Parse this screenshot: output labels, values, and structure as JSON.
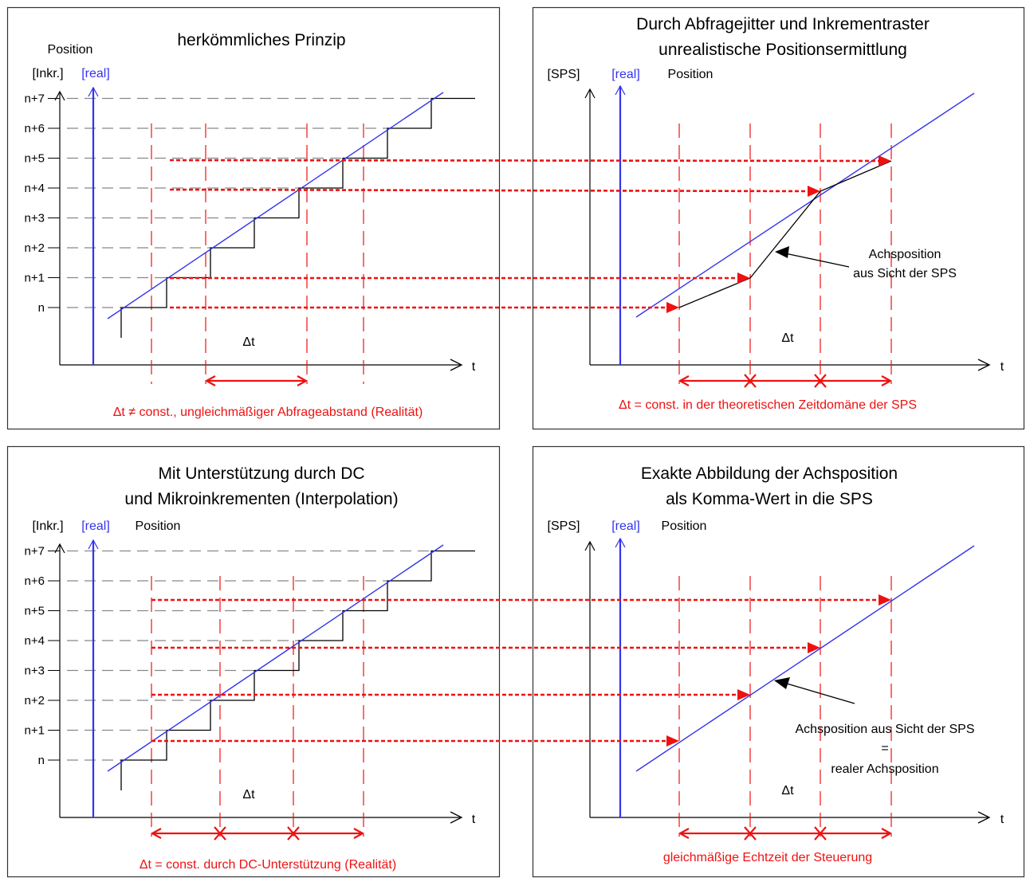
{
  "colors": {
    "black": "#000000",
    "blue": "#3333ee",
    "red": "#ee1111",
    "grid_gray": "#888888",
    "frame": "#333333"
  },
  "tick_labels": [
    "n",
    "n+1",
    "n+2",
    "n+3",
    "n+4",
    "n+5",
    "n+6",
    "n+7"
  ],
  "panels": {
    "top_left": {
      "title": [
        "herkömmliches Prinzip"
      ],
      "y_label_top": "Position",
      "y_label_incr": "[Inkr.]",
      "y_label_real": "[real]",
      "x_label": "t",
      "delta_label": "Δt",
      "caption": "Δt ≠ const., ungleichmäßiger Abfrageabstand (Realität)"
    },
    "top_right": {
      "title": [
        "Durch Abfragejitter und Inkrementraster",
        "unrealistische Positionsermittlung"
      ],
      "y_label_sps": "[SPS]",
      "y_label_real": "[real]",
      "y_label_pos": "Position",
      "x_label": "t",
      "delta_label": "Δt",
      "annotation": [
        "Achsposition",
        "aus Sicht der SPS"
      ],
      "caption": "Δt = const. in der theoretischen Zeitdomäne der SPS"
    },
    "bottom_left": {
      "title": [
        "Mit Unterstützung durch DC",
        "und Mikroinkrementen (Interpolation)"
      ],
      "y_label_incr": "[Inkr.]",
      "y_label_real": "[real]",
      "y_label_pos": "Position",
      "x_label": "t",
      "delta_label": "Δt",
      "caption": "Δt = const. durch DC-Unterstützung (Realität)"
    },
    "bottom_right": {
      "title": [
        "Exakte Abbildung der Achsposition",
        "als Komma-Wert in die SPS"
      ],
      "y_label_sps": "[SPS]",
      "y_label_real": "[real]",
      "y_label_pos": "Position",
      "x_label": "t",
      "delta_label": "Δt",
      "annotation": [
        "Achsposition aus Sicht der SPS",
        "=",
        "realer Achsposition"
      ],
      "caption": "gleichmäßige Echtzeit der Steuerung"
    }
  }
}
